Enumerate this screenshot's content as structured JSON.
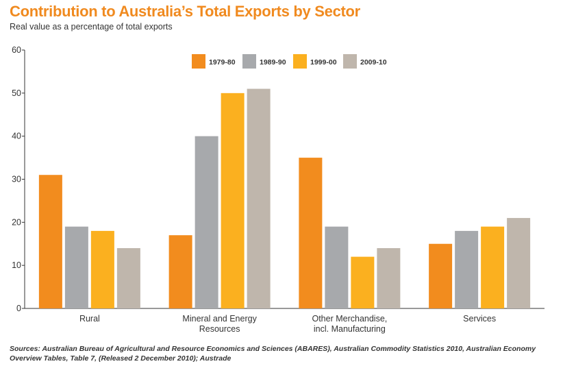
{
  "title": "Contribution to Australia’s Total Exports by Sector",
  "subtitle": "Real value as a percentage of total exports",
  "source": "Sources: Australian Bureau of Agricultural and Resource Economics and Sciences (ABARES), Australian Commodity Statistics 2010, Australian Economy Overview Tables, Table 7, (Released 2 December 2010); Austrade",
  "chart_data": {
    "type": "bar",
    "title": "Contribution to Australia’s Total Exports by Sector",
    "subtitle": "Real value as a percentage of total exports",
    "categories": [
      [
        "Rural"
      ],
      [
        "Mineral and Energy",
        "Resources"
      ],
      [
        "Other Merchandise,",
        "incl. Manufacturing"
      ],
      [
        "Services"
      ]
    ],
    "series": [
      {
        "name": "1979-80",
        "color": "#f28c1e",
        "values": [
          31,
          17,
          35,
          15
        ]
      },
      {
        "name": "1989-90",
        "color": "#a7a9ac",
        "values": [
          19,
          40,
          19,
          18
        ]
      },
      {
        "name": "1999-00",
        "color": "#fbb01f",
        "values": [
          18,
          50,
          12,
          19
        ]
      },
      {
        "name": "2009-10",
        "color": "#bfb6ac",
        "values": [
          14,
          51,
          14,
          21
        ]
      }
    ],
    "ylim": [
      0,
      60
    ],
    "yticks": [
      0,
      10,
      20,
      30,
      40,
      50,
      60
    ],
    "grid": false,
    "legend": "top-center"
  }
}
